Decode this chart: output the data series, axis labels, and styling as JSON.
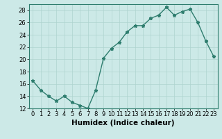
{
  "x": [
    0,
    1,
    2,
    3,
    4,
    5,
    6,
    7,
    8,
    9,
    10,
    11,
    12,
    13,
    14,
    15,
    16,
    17,
    18,
    19,
    20,
    21,
    22,
    23
  ],
  "y": [
    16.5,
    15.0,
    14.0,
    13.2,
    14.0,
    13.0,
    12.5,
    12.0,
    15.0,
    20.2,
    21.8,
    22.8,
    24.5,
    25.5,
    25.5,
    26.7,
    27.2,
    28.5,
    27.2,
    27.8,
    28.2,
    26.0,
    23.0,
    20.5
  ],
  "xlabel": "Humidex (Indice chaleur)",
  "ylim": [
    12,
    29
  ],
  "xlim": [
    -0.5,
    23.5
  ],
  "yticks": [
    12,
    14,
    16,
    18,
    20,
    22,
    24,
    26,
    28
  ],
  "xticks": [
    0,
    1,
    2,
    3,
    4,
    5,
    6,
    7,
    8,
    9,
    10,
    11,
    12,
    13,
    14,
    15,
    16,
    17,
    18,
    19,
    20,
    21,
    22,
    23
  ],
  "line_color": "#2e7d6e",
  "marker": "*",
  "bg_color": "#cce9e7",
  "grid_color": "#aed4d0",
  "spine_color": "#2e7d6e",
  "tick_label_fontsize": 6.0,
  "xlabel_fontsize": 7.5
}
